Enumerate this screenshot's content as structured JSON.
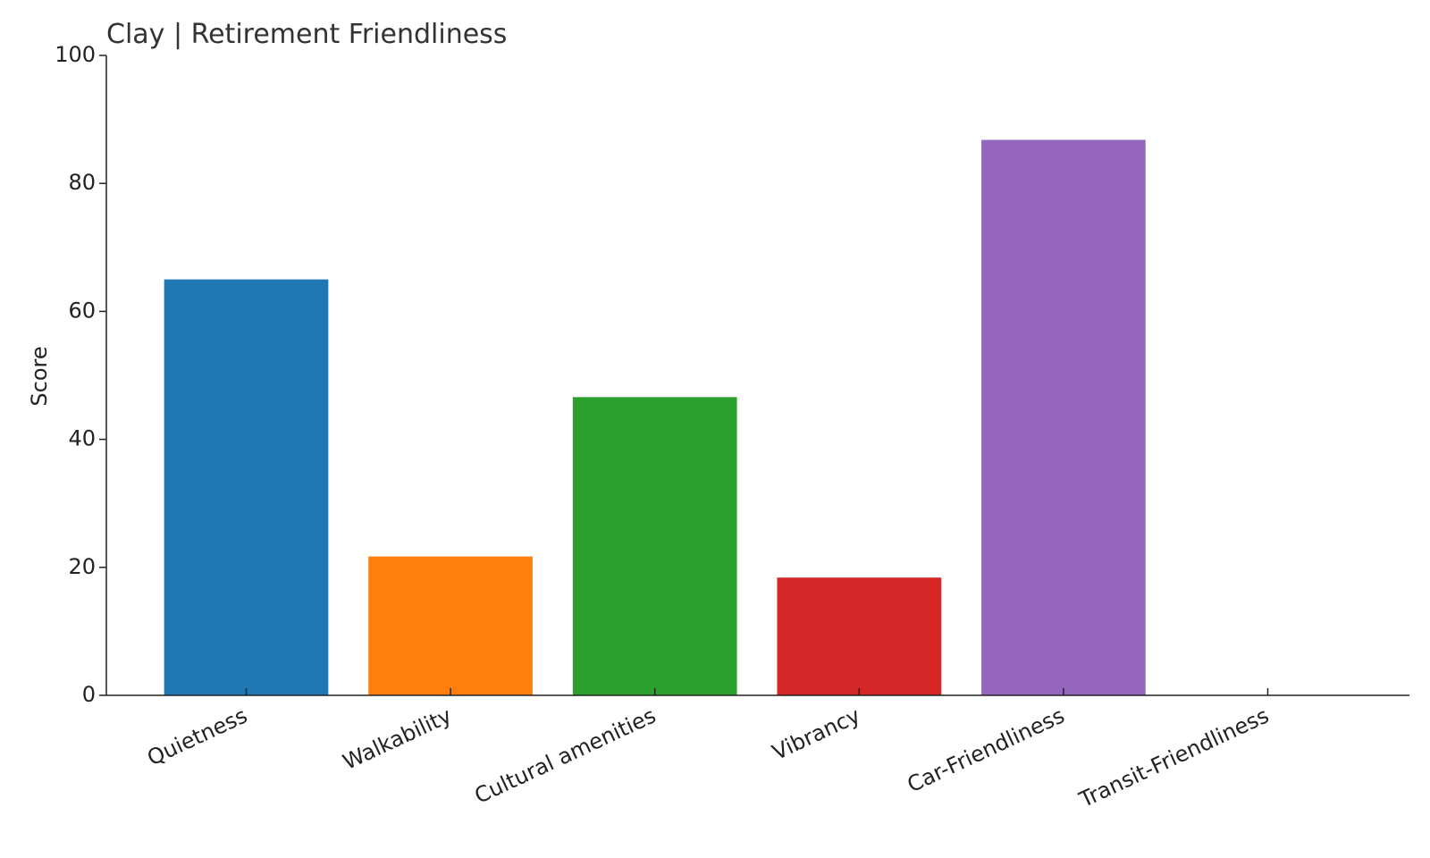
{
  "chart_data": {
    "type": "bar",
    "title": "Clay | Retirement Friendliness",
    "y_label": "Score",
    "categories": [
      "Quietness",
      "Walkability",
      "Cultural amenities",
      "Vibrancy",
      "Car-Friendliness",
      "Transit-Friendliness"
    ],
    "values": [
      65,
      21.7,
      46.6,
      18.4,
      86.8,
      0
    ],
    "colors": [
      "#1f77b4",
      "#ff7f0e",
      "#2ca02c",
      "#d62728",
      "#9467bd",
      "#8c564b"
    ],
    "ylim": [
      0,
      100
    ],
    "yticks": [
      0,
      20,
      40,
      60,
      80,
      100
    ],
    "grid": false
  }
}
